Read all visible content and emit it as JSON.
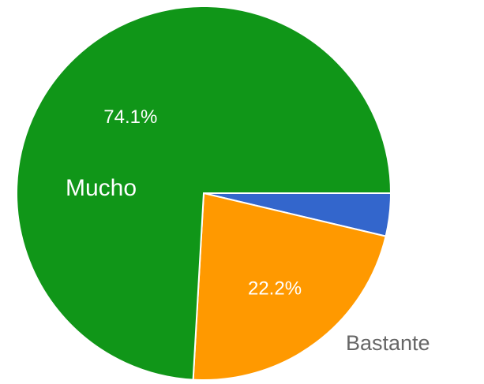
{
  "chart_data": {
    "type": "pie",
    "categories": [
      "Bastante",
      null,
      "Mucho"
    ],
    "values": [
      22.2,
      3.7,
      74.1
    ],
    "value_labels": [
      "22.2%",
      null,
      "74.1%"
    ],
    "colors": [
      "#ff9900",
      "#3366cc",
      "#109618"
    ]
  }
}
